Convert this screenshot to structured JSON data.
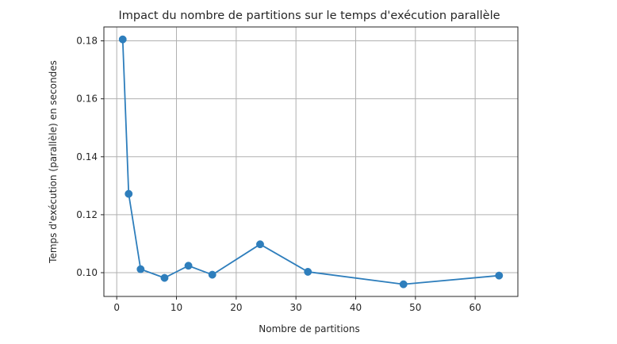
{
  "chart_data": {
    "type": "line",
    "title": "Impact du nombre de partitions sur le temps d'exécution parallèle",
    "xlabel": "Nombre de partitions",
    "ylabel": "Temps d'exécution (parallèle) en secondes",
    "x": [
      1,
      2,
      4,
      8,
      12,
      16,
      24,
      32,
      48,
      64
    ],
    "series": [
      {
        "values": [
          0.1805,
          0.1272,
          0.1012,
          0.0982,
          0.1024,
          0.0993,
          0.1098,
          0.1003,
          0.096,
          0.099
        ]
      }
    ],
    "xlim": [
      -2.15,
      67.15
    ],
    "ylim": [
      0.0918,
      0.1848
    ],
    "xticks": [
      0,
      10,
      20,
      30,
      40,
      50,
      60
    ],
    "yticks": [
      0.1,
      0.12,
      0.14,
      0.16,
      0.18
    ],
    "xtick_labels": [
      "0",
      "10",
      "20",
      "30",
      "40",
      "50",
      "60"
    ],
    "ytick_labels": [
      "0.10",
      "0.12",
      "0.14",
      "0.16",
      "0.18"
    ],
    "grid": true,
    "legend": "none",
    "colors": {
      "line": "#2e7ebc",
      "marker": "#2e7ebc",
      "grid": "#b0b0b0",
      "axis": "#262626"
    }
  }
}
